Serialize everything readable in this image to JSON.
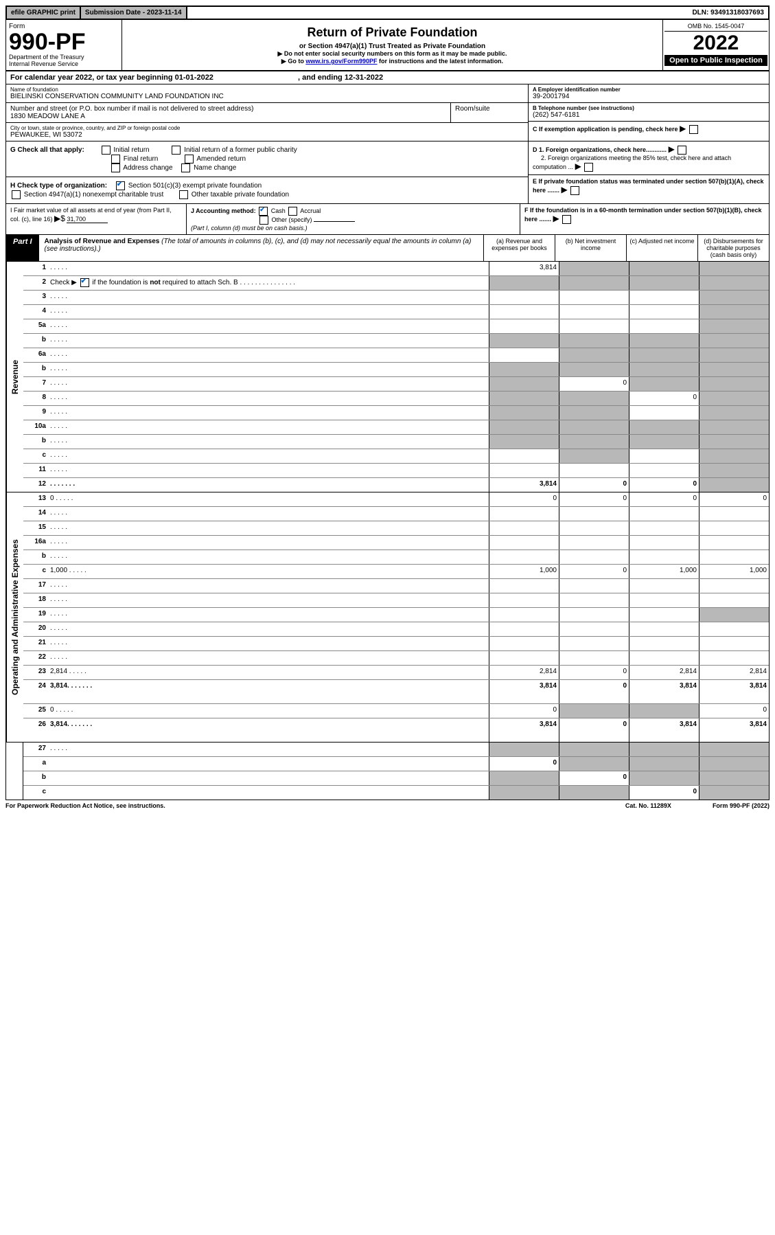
{
  "top": {
    "efile": "efile GRAPHIC print",
    "subdate_label": "Submission Date - ",
    "subdate": "2023-11-14",
    "dln_label": "DLN: ",
    "dln": "93491318037693"
  },
  "header": {
    "form_label": "Form",
    "form_num": "990-PF",
    "dept1": "Department of the Treasury",
    "dept2": "Internal Revenue Service",
    "title": "Return of Private Foundation",
    "subtitle": "or Section 4947(a)(1) Trust Treated as Private Foundation",
    "note1": "▶ Do not enter social security numbers on this form as it may be made public.",
    "note2_pre": "▶ Go to ",
    "note2_link": "www.irs.gov/Form990PF",
    "note2_post": " for instructions and the latest information.",
    "omb": "OMB No. 1545-0047",
    "year": "2022",
    "inspect": "Open to Public Inspection"
  },
  "calendar": {
    "text_pre": "For calendar year 2022, or tax year beginning ",
    "begin": "01-01-2022",
    "text_mid": ", and ending ",
    "end": "12-31-2022"
  },
  "entity": {
    "name_label": "Name of foundation",
    "name": "BIELINSKI CONSERVATION COMMUNITY LAND FOUNDATION INC",
    "addr_label": "Number and street (or P.O. box number if mail is not delivered to street address)",
    "addr": "1830 MEADOW LANE A",
    "room_label": "Room/suite",
    "room": "",
    "city_label": "City or town, state or province, country, and ZIP or foreign postal code",
    "city": "PEWAUKEE, WI  53072",
    "ein_label": "A Employer identification number",
    "ein": "39-2001794",
    "phone_label": "B Telephone number (see instructions)",
    "phone": "(262) 547-6181",
    "c_label": "C If exemption application is pending, check here",
    "d1": "D 1. Foreign organizations, check here............",
    "d2": "2. Foreign organizations meeting the 85% test, check here and attach computation ...",
    "e_label": "E If private foundation status was terminated under section 507(b)(1)(A), check here .......",
    "f_label": "F If the foundation is in a 60-month termination under section 507(b)(1)(B), check here ......."
  },
  "g": {
    "label": "G Check all that apply:",
    "opts": [
      "Initial return",
      "Final return",
      "Address change",
      "Initial return of a former public charity",
      "Amended return",
      "Name change"
    ]
  },
  "h": {
    "label": "H Check type of organization:",
    "opt1": "Section 501(c)(3) exempt private foundation",
    "opt2": "Section 4947(a)(1) nonexempt charitable trust",
    "opt3": "Other taxable private foundation"
  },
  "i": {
    "label": "I Fair market value of all assets at end of year (from Part II, col. (c), line 16)",
    "arrow": "▶$",
    "val": "31,700"
  },
  "j": {
    "label": "J Accounting method:",
    "cash": "Cash",
    "accrual": "Accrual",
    "other": "Other (specify)",
    "note": "(Part I, column (d) must be on cash basis.)"
  },
  "part1": {
    "label": "Part I",
    "title": "Analysis of Revenue and Expenses",
    "desc": "(The total of amounts in columns (b), (c), and (d) may not necessarily equal the amounts in column (a) (see instructions).)",
    "col_a": "(a) Revenue and expenses per books",
    "col_b": "(b) Net investment income",
    "col_c": "(c) Adjusted net income",
    "col_d": "(d) Disbursements for charitable purposes (cash basis only)"
  },
  "side_labels": {
    "revenue": "Revenue",
    "expenses": "Operating and Administrative Expenses"
  },
  "rows": [
    {
      "n": "1",
      "d": "",
      "a": "3,814",
      "b": "",
      "c": "",
      "shade": [
        false,
        true,
        true,
        true
      ]
    },
    {
      "n": "2",
      "d": "",
      "a": "",
      "b": "",
      "c": "",
      "shade": [
        true,
        true,
        true,
        true
      ],
      "nodots": true,
      "checkbold": true
    },
    {
      "n": "3",
      "d": "",
      "a": "",
      "b": "",
      "c": "",
      "shade": [
        false,
        false,
        false,
        true
      ]
    },
    {
      "n": "4",
      "d": "",
      "a": "",
      "b": "",
      "c": "",
      "shade": [
        false,
        false,
        false,
        true
      ]
    },
    {
      "n": "5a",
      "d": "",
      "a": "",
      "b": "",
      "c": "",
      "shade": [
        false,
        false,
        false,
        true
      ]
    },
    {
      "n": "b",
      "d": "",
      "a": "",
      "b": "",
      "c": "",
      "shade": [
        true,
        true,
        true,
        true
      ],
      "inline_box": true
    },
    {
      "n": "6a",
      "d": "",
      "a": "",
      "b": "",
      "c": "",
      "shade": [
        false,
        true,
        true,
        true
      ]
    },
    {
      "n": "b",
      "d": "",
      "a": "",
      "b": "",
      "c": "",
      "shade": [
        true,
        true,
        true,
        true
      ],
      "inline_box": true
    },
    {
      "n": "7",
      "d": "",
      "a": "",
      "b": "0",
      "c": "",
      "shade": [
        true,
        false,
        true,
        true
      ]
    },
    {
      "n": "8",
      "d": "",
      "a": "",
      "b": "",
      "c": "0",
      "shade": [
        true,
        true,
        false,
        true
      ]
    },
    {
      "n": "9",
      "d": "",
      "a": "",
      "b": "",
      "c": "",
      "shade": [
        true,
        true,
        false,
        true
      ]
    },
    {
      "n": "10a",
      "d": "",
      "a": "",
      "b": "",
      "c": "",
      "shade": [
        true,
        true,
        true,
        true
      ],
      "inline_box": true
    },
    {
      "n": "b",
      "d": "",
      "a": "",
      "b": "",
      "c": "",
      "shade": [
        true,
        true,
        true,
        true
      ],
      "inline_box": true
    },
    {
      "n": "c",
      "d": "",
      "a": "",
      "b": "",
      "c": "",
      "shade": [
        false,
        true,
        false,
        true
      ]
    },
    {
      "n": "11",
      "d": "",
      "a": "",
      "b": "",
      "c": "",
      "shade": [
        false,
        false,
        false,
        true
      ]
    },
    {
      "n": "12",
      "d": "",
      "a": "3,814",
      "b": "0",
      "c": "0",
      "shade": [
        false,
        false,
        false,
        true
      ],
      "bold": true
    }
  ],
  "exp_rows": [
    {
      "n": "13",
      "d": "0",
      "a": "0",
      "b": "0",
      "c": "0"
    },
    {
      "n": "14",
      "d": "",
      "a": "",
      "b": "",
      "c": ""
    },
    {
      "n": "15",
      "d": "",
      "a": "",
      "b": "",
      "c": ""
    },
    {
      "n": "16a",
      "d": "",
      "a": "",
      "b": "",
      "c": ""
    },
    {
      "n": "b",
      "d": "",
      "a": "",
      "b": "",
      "c": ""
    },
    {
      "n": "c",
      "d": "1,000",
      "a": "1,000",
      "b": "0",
      "c": "1,000"
    },
    {
      "n": "17",
      "d": "",
      "a": "",
      "b": "",
      "c": ""
    },
    {
      "n": "18",
      "d": "",
      "a": "",
      "b": "",
      "c": ""
    },
    {
      "n": "19",
      "d": "",
      "a": "",
      "b": "",
      "c": "",
      "shade": [
        false,
        false,
        false,
        true
      ]
    },
    {
      "n": "20",
      "d": "",
      "a": "",
      "b": "",
      "c": ""
    },
    {
      "n": "21",
      "d": "",
      "a": "",
      "b": "",
      "c": ""
    },
    {
      "n": "22",
      "d": "",
      "a": "",
      "b": "",
      "c": ""
    },
    {
      "n": "23",
      "d": "2,814",
      "a": "2,814",
      "b": "0",
      "c": "2,814"
    },
    {
      "n": "24",
      "d": "3,814",
      "a": "3,814",
      "b": "0",
      "c": "3,814",
      "bold": true,
      "tall": true
    },
    {
      "n": "25",
      "d": "0",
      "a": "0",
      "b": "",
      "c": "",
      "shade": [
        false,
        true,
        true,
        false
      ]
    },
    {
      "n": "26",
      "d": "3,814",
      "a": "3,814",
      "b": "0",
      "c": "3,814",
      "bold": true,
      "tall": true
    }
  ],
  "sub_rows": [
    {
      "n": "27",
      "d": "",
      "a": "",
      "b": "",
      "c": "",
      "shade": [
        true,
        true,
        true,
        true
      ]
    },
    {
      "n": "a",
      "d": "",
      "a": "0",
      "b": "",
      "c": "",
      "shade": [
        false,
        true,
        true,
        true
      ],
      "bold": true
    },
    {
      "n": "b",
      "d": "",
      "a": "",
      "b": "0",
      "c": "",
      "shade": [
        true,
        false,
        true,
        true
      ],
      "bold": true
    },
    {
      "n": "c",
      "d": "",
      "a": "",
      "b": "",
      "c": "0",
      "shade": [
        true,
        true,
        false,
        true
      ],
      "bold": true
    }
  ],
  "footer": {
    "left": "For Paperwork Reduction Act Notice, see instructions.",
    "mid": "Cat. No. 11289X",
    "right": "Form 990-PF (2022)"
  },
  "colors": {
    "shade": "#b8b8b8",
    "link": "#0000cc"
  }
}
